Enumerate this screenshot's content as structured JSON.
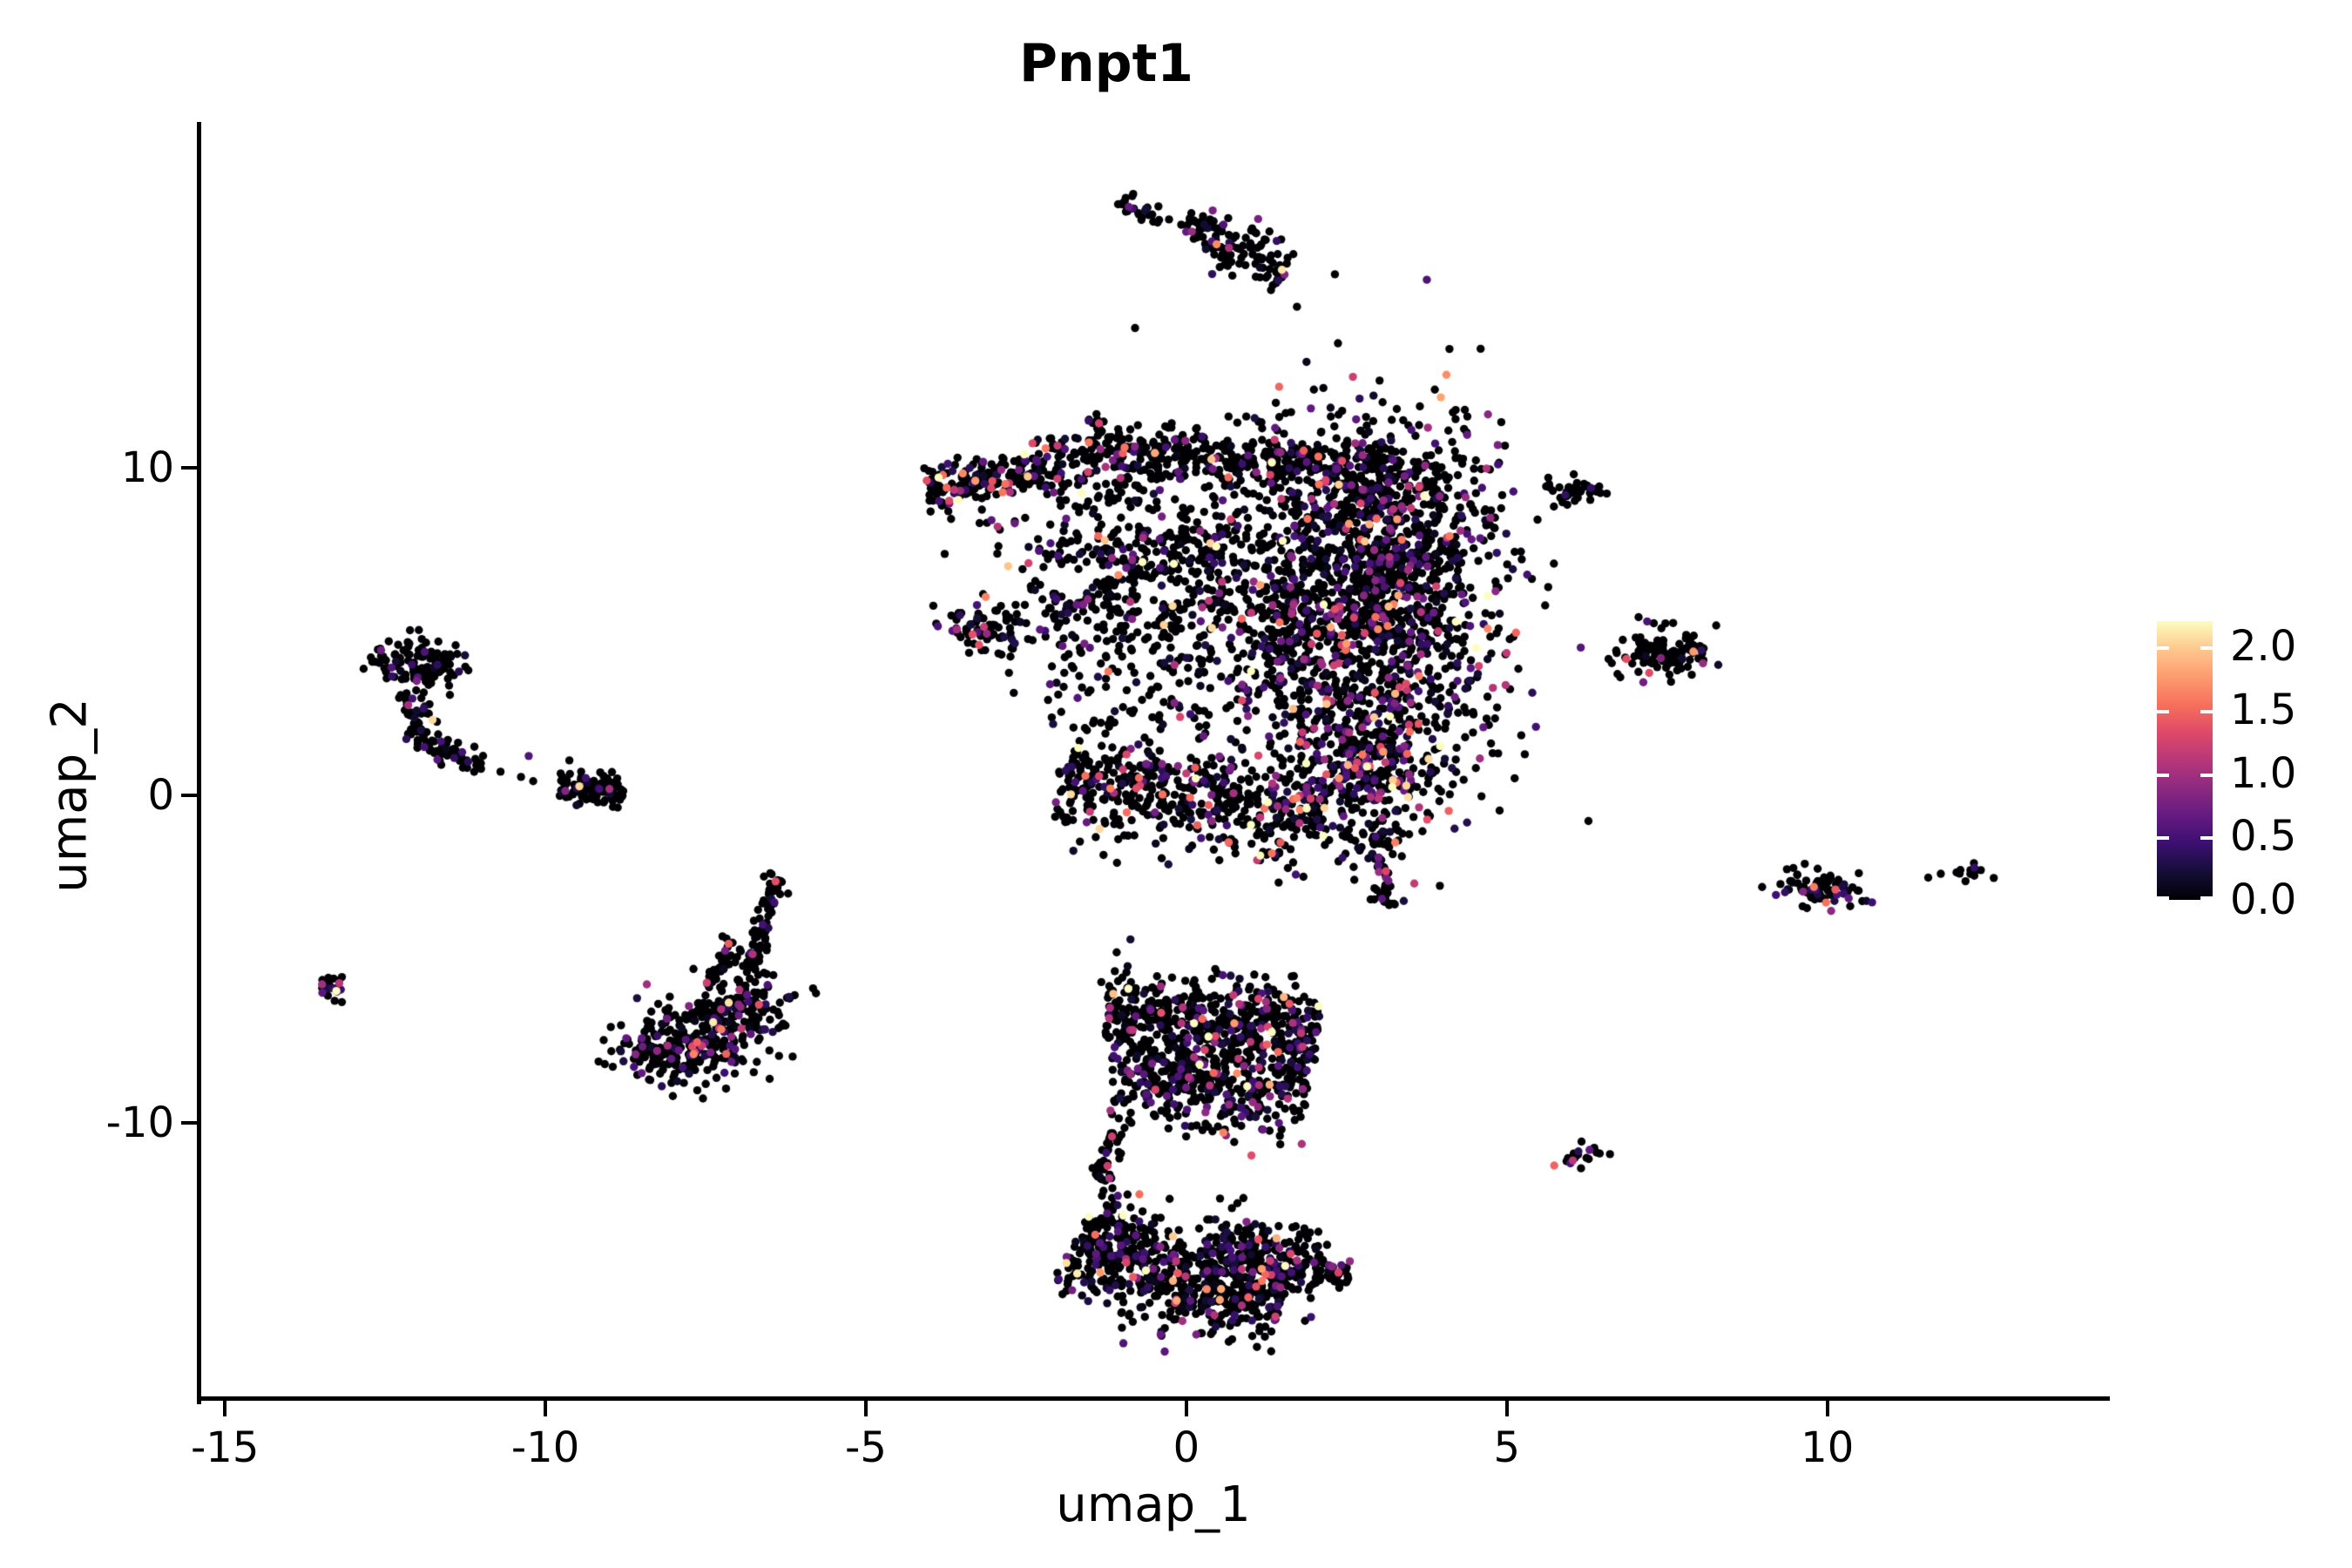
{
  "title": "Pnpt1",
  "chart_data": {
    "type": "scatter",
    "subtype": "umap-feature-plot",
    "title": "Pnpt1",
    "xlabel": "umap_1",
    "ylabel": "umap_2",
    "x_ticks": [
      "-15",
      "-10",
      "-5",
      "0",
      "5",
      "10"
    ],
    "x_tick_values": [
      -15,
      -10,
      -5,
      0,
      5,
      10
    ],
    "y_ticks": [
      "10",
      "0",
      "-10"
    ],
    "y_tick_values": [
      10,
      0,
      -10
    ],
    "x_range": [
      -15.41,
      14.38
    ],
    "y_range": [
      -18.48,
      20.58
    ],
    "grid": false,
    "background": "#ffffff",
    "point_radius_px": 4.7,
    "legend": {
      "position": "right",
      "ticks": [
        "2.0",
        "1.5",
        "1.0",
        "0.5",
        "0.0"
      ],
      "tick_values": [
        2.0,
        1.5,
        1.0,
        0.5,
        0.0
      ],
      "max_value": 2.2,
      "colormap": "magma",
      "anchors": [
        [
          0.0,
          "#000004"
        ],
        [
          0.1,
          "#140e36"
        ],
        [
          0.2,
          "#3b0f70"
        ],
        [
          0.3,
          "#641a80"
        ],
        [
          0.4,
          "#8c2981"
        ],
        [
          0.5,
          "#b73779"
        ],
        [
          0.6,
          "#de4968"
        ],
        [
          0.7,
          "#f7705c"
        ],
        [
          0.8,
          "#fd9b6f"
        ],
        [
          0.9,
          "#fec88e"
        ],
        [
          1.0,
          "#fcfdbf"
        ]
      ]
    },
    "clusters": [
      {
        "name": "top-streak-main",
        "type": "strip",
        "x1": -0.03,
        "y1": 17.44,
        "x2": 1.58,
        "y2": 16.11,
        "w": 0.37,
        "n": 130,
        "p_zero": 0.84,
        "v_mean": 0.6
      },
      {
        "name": "top-streak-small",
        "type": "strip",
        "x1": -1.07,
        "y1": 18.19,
        "x2": -0.41,
        "y2": 17.6,
        "w": 0.16,
        "n": 26,
        "p_zero": 0.92,
        "v_mean": 0.5
      },
      {
        "name": "central-nub",
        "type": "gauss",
        "cx": -1.41,
        "cy": 11.29,
        "sx": 0.1,
        "sy": 0.32,
        "rot": -35,
        "n": 16,
        "p_zero": 0.9,
        "v_mean": 0.5
      },
      {
        "name": "central-left-arm",
        "type": "strip",
        "x1": -4.06,
        "y1": 9.35,
        "x2": -2.13,
        "y2": 9.98,
        "w": 0.35,
        "n": 190,
        "p_zero": 0.78,
        "v_mean": 0.55
      },
      {
        "name": "central-top-band-a",
        "type": "strip",
        "x1": -2.13,
        "y1": 10.2,
        "x2": 0.52,
        "y2": 10.57,
        "w": 0.43,
        "n": 210,
        "p_zero": 0.8,
        "v_mean": 0.55
      },
      {
        "name": "central-top-band-b",
        "type": "strip",
        "x1": 0.52,
        "y1": 10.47,
        "x2": 3.23,
        "y2": 9.61,
        "w": 0.48,
        "n": 230,
        "p_zero": 0.8,
        "v_mean": 0.55
      },
      {
        "name": "central-right-mass",
        "type": "gauss",
        "cx": 2.76,
        "cy": 5.67,
        "sx": 1.09,
        "sy": 2.8,
        "rot": 0,
        "n": 1500,
        "p_zero": 0.73,
        "v_mean": 0.6
      },
      {
        "name": "central-right-upper",
        "type": "gauss",
        "cx": 3.23,
        "cy": 8.33,
        "sx": 0.82,
        "sy": 1.6,
        "rot": 0,
        "n": 330,
        "p_zero": 0.76,
        "v_mean": 0.55
      },
      {
        "name": "central-mid-mass",
        "type": "gauss",
        "cx": -0.43,
        "cy": 7.14,
        "sx": 1.15,
        "sy": 1.73,
        "rot": 0,
        "n": 480,
        "p_zero": 0.78,
        "v_mean": 0.55
      },
      {
        "name": "central-left-blob",
        "type": "gauss",
        "cx": -3.18,
        "cy": 5.09,
        "sx": 0.41,
        "sy": 0.4,
        "rot": 12,
        "n": 85,
        "p_zero": 0.84,
        "v_mean": 0.5
      },
      {
        "name": "central-sparse-mid",
        "type": "rect",
        "x1": -2.2,
        "x2": 1.88,
        "y1": 1.94,
        "y2": 7.8,
        "n": 250,
        "p_zero": 0.8,
        "v_mean": 0.55
      },
      {
        "name": "central-bottom-band",
        "type": "strip",
        "x1": -2.0,
        "y1": 0.53,
        "x2": 2.15,
        "y2": -0.59,
        "w": 0.8,
        "n": 520,
        "p_zero": 0.74,
        "v_mean": 0.6
      },
      {
        "name": "central-bottom-right",
        "type": "gauss",
        "cx": 2.76,
        "cy": 0.75,
        "sx": 0.61,
        "sy": 1.12,
        "rot": 0,
        "n": 320,
        "p_zero": 0.65,
        "v_mean": 0.65
      },
      {
        "name": "central-tail",
        "type": "strip",
        "x1": 2.85,
        "y1": -1.2,
        "x2": 3.21,
        "y2": -3.44,
        "w": 0.21,
        "n": 55,
        "p_zero": 0.85,
        "v_mean": 0.5
      },
      {
        "name": "left-hook-head",
        "type": "gauss",
        "cx": -11.92,
        "cy": 4.02,
        "sx": 0.35,
        "sy": 0.45,
        "rot": 0,
        "n": 120,
        "p_zero": 0.88,
        "v_mean": 0.45
      },
      {
        "name": "left-hook-arc-a",
        "type": "strip",
        "x1": -12.15,
        "y1": 3.14,
        "x2": -11.98,
        "y2": 1.81,
        "w": 0.21,
        "n": 40,
        "p_zero": 0.86,
        "v_mean": 0.45
      },
      {
        "name": "left-hook-arc-b",
        "type": "strip",
        "x1": -11.98,
        "y1": 1.81,
        "x2": -11.44,
        "y2": 1.14,
        "w": 0.21,
        "n": 35,
        "p_zero": 0.86,
        "v_mean": 0.45
      },
      {
        "name": "left-hook-arc-c",
        "type": "strip",
        "x1": -11.44,
        "y1": 1.14,
        "x2": -10.99,
        "y2": 0.91,
        "w": 0.16,
        "n": 20,
        "p_zero": 0.9,
        "v_mean": 0.45
      },
      {
        "name": "left-elongated-blob",
        "type": "strip",
        "x1": -9.78,
        "y1": 0.32,
        "x2": -8.78,
        "y2": 0.13,
        "w": 0.24,
        "n": 95,
        "p_zero": 0.86,
        "v_mean": 0.5
      },
      {
        "name": "far-left-tiny",
        "type": "gauss",
        "cx": -13.32,
        "cy": -5.78,
        "sx": 0.15,
        "sy": 0.21,
        "rot": 0,
        "n": 22,
        "p_zero": 0.86,
        "v_mean": 0.5
      },
      {
        "name": "triangle-strand-a",
        "type": "strip",
        "x1": -6.37,
        "y1": -2.4,
        "x2": -6.82,
        "y2": -5.46,
        "w": 0.16,
        "n": 75,
        "p_zero": 0.9,
        "v_mean": 0.5
      },
      {
        "name": "triangle-strand-b",
        "type": "strip",
        "x1": -7.05,
        "y1": -4.45,
        "x2": -7.39,
        "y2": -5.94,
        "w": 0.16,
        "n": 40,
        "p_zero": 0.88,
        "v_mean": 0.5
      },
      {
        "name": "triangle-base-right",
        "type": "gauss",
        "cx": -6.89,
        "cy": -6.58,
        "sx": 0.38,
        "sy": 0.59,
        "rot": 0,
        "n": 130,
        "p_zero": 0.78,
        "v_mean": 0.5
      },
      {
        "name": "triangle-base-mid",
        "type": "gauss",
        "cx": -7.64,
        "cy": -7.38,
        "sx": 0.54,
        "sy": 0.67,
        "rot": 0,
        "n": 180,
        "p_zero": 0.78,
        "v_mean": 0.5
      },
      {
        "name": "triangle-base-left",
        "type": "gauss",
        "cx": -8.04,
        "cy": -7.91,
        "sx": 0.41,
        "sy": 0.43,
        "rot": 0,
        "n": 110,
        "p_zero": 0.8,
        "v_mean": 0.5
      },
      {
        "name": "bottom-c-upper-a",
        "type": "strip",
        "x1": -1.25,
        "y1": -6.71,
        "x2": 2.08,
        "y2": -7.24,
        "w": 0.75,
        "n": 520,
        "p_zero": 0.78,
        "v_mean": 0.55
      },
      {
        "name": "bottom-c-upper-b",
        "type": "strip",
        "x1": -1.18,
        "y1": -8.71,
        "x2": 1.88,
        "y2": -9.11,
        "w": 0.67,
        "n": 380,
        "p_zero": 0.78,
        "v_mean": 0.55
      },
      {
        "name": "bottom-c-nub",
        "type": "gauss",
        "cx": -1.22,
        "cy": -6.1,
        "sx": 0.11,
        "sy": 0.27,
        "rot": 0,
        "n": 10,
        "p_zero": 0.9,
        "v_mean": 0.5
      },
      {
        "name": "bottom-c-connector",
        "type": "strip",
        "x1": -1.11,
        "y1": -10.04,
        "x2": -1.36,
        "y2": -11.77,
        "w": 0.19,
        "n": 35,
        "p_zero": 0.9,
        "v_mean": 0.5
      },
      {
        "name": "bottom-c-lower-a",
        "type": "strip",
        "x1": -1.68,
        "y1": -13.37,
        "x2": -0.3,
        "y2": -14.83,
        "w": 0.8,
        "n": 330,
        "p_zero": 0.78,
        "v_mean": 0.55
      },
      {
        "name": "bottom-c-lower-b",
        "type": "strip",
        "x1": -0.3,
        "y1": -14.83,
        "x2": 1.47,
        "y2": -15.37,
        "w": 0.75,
        "n": 330,
        "p_zero": 0.78,
        "v_mean": 0.55
      },
      {
        "name": "bottom-c-lower-c",
        "type": "strip",
        "x1": 0.24,
        "y1": -13.63,
        "x2": 2.15,
        "y2": -14.43,
        "w": 0.59,
        "n": 220,
        "p_zero": 0.8,
        "v_mean": 0.55
      },
      {
        "name": "bottom-c-tail",
        "type": "strip",
        "x1": 2.15,
        "y1": -14.57,
        "x2": 2.53,
        "y2": -14.78,
        "w": 0.21,
        "n": 30,
        "p_zero": 0.85,
        "v_mean": 0.5
      },
      {
        "name": "right-tiny-upper",
        "type": "gauss",
        "cx": 6.05,
        "cy": 9.27,
        "sx": 0.23,
        "sy": 0.19,
        "rot": 8,
        "n": 40,
        "p_zero": 0.93,
        "v_mean": 0.45
      },
      {
        "name": "right-mid-blob",
        "type": "gauss",
        "cx": 7.47,
        "cy": 4.29,
        "sx": 0.37,
        "sy": 0.35,
        "rot": 0,
        "n": 115,
        "p_zero": 0.9,
        "v_mean": 0.5
      },
      {
        "name": "right-low-blob",
        "type": "gauss",
        "cx": 9.82,
        "cy": -2.93,
        "sx": 0.34,
        "sy": 0.29,
        "rot": 8,
        "n": 85,
        "p_zero": 0.84,
        "v_mean": 0.5
      },
      {
        "name": "far-right-tiny",
        "type": "gauss",
        "cx": 12.23,
        "cy": -2.34,
        "sx": 0.18,
        "sy": 0.16,
        "rot": 0,
        "n": 14,
        "p_zero": 0.8,
        "v_mean": 0.5
      },
      {
        "name": "bottom-right-tiny",
        "type": "gauss",
        "cx": 6.14,
        "cy": -11.02,
        "sx": 0.19,
        "sy": 0.21,
        "rot": -20,
        "n": 18,
        "p_zero": 0.88,
        "v_mean": 0.5
      }
    ],
    "extra_points": [
      {
        "x": 1.49,
        "y": 16.06,
        "v": 2.1
      },
      {
        "x": -3.74,
        "y": 9.4,
        "v": 1.5
      },
      {
        "x": -3.7,
        "y": 9.0,
        "v": 1.3
      },
      {
        "x": -3.04,
        "y": 8.41,
        "v": 0.6
      },
      {
        "x": -3.19,
        "y": 8.73,
        "v": 0
      },
      {
        "x": -3.11,
        "y": 8.33,
        "v": 0
      },
      {
        "x": -2.91,
        "y": 8.12,
        "v": 0
      },
      {
        "x": -0.27,
        "y": 17.6,
        "v": 0
      },
      {
        "x": -0.08,
        "y": 17.44,
        "v": 0
      },
      {
        "x": 0.24,
        "y": 17.33,
        "v": 0
      },
      {
        "x": -10.7,
        "y": 0.72,
        "v": 0
      },
      {
        "x": -10.38,
        "y": 0.56,
        "v": 0
      },
      {
        "x": -10.19,
        "y": 0.43,
        "v": 0
      },
      {
        "x": -10.26,
        "y": 1.2,
        "v": 0.55
      },
      {
        "x": -13.48,
        "y": -6.04,
        "v": 0.6
      },
      {
        "x": -9.0,
        "y": 0.19,
        "v": 1.0
      },
      {
        "x": 7.91,
        "y": 4.39,
        "v": 1.75
      },
      {
        "x": 9.79,
        "y": -2.8,
        "v": 1.6
      },
      {
        "x": 6.03,
        "y": -11.16,
        "v": 1.1
      },
      {
        "x": 6.29,
        "y": -10.84,
        "v": 0.65
      },
      {
        "x": 11.77,
        "y": -2.4,
        "v": 0
      }
    ]
  }
}
